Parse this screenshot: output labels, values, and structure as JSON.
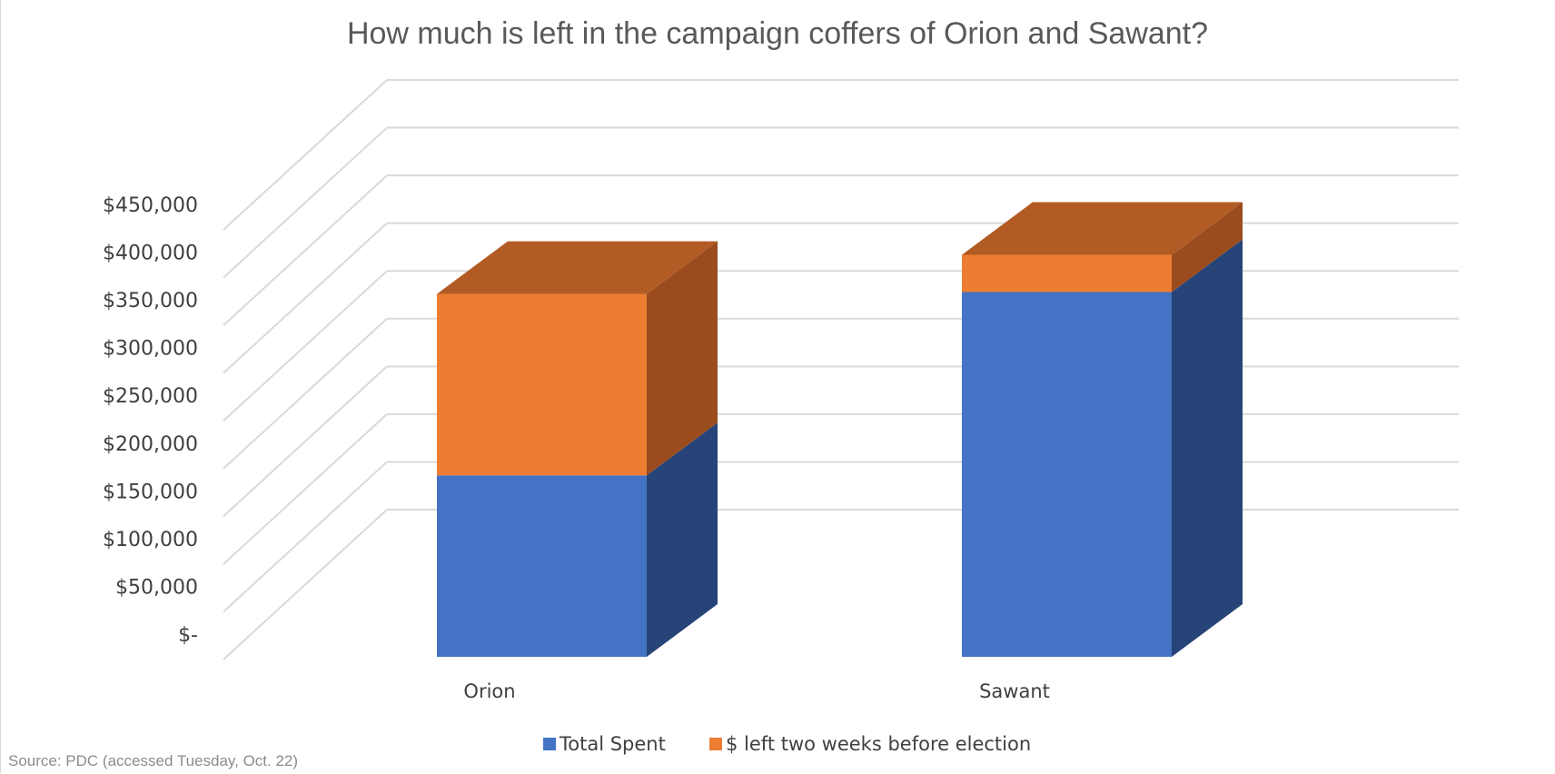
{
  "chart_data": {
    "type": "bar",
    "stacked": true,
    "three_d": true,
    "title": "How much is left in the campaign coffers of Orion and Sawant?",
    "categories": [
      "Orion",
      "Sawant"
    ],
    "series": [
      {
        "name": "Total Spent",
        "values": [
          190000,
          382000
        ],
        "color": "#4472C4",
        "side_color": "#264478",
        "top_color": "#2F5597"
      },
      {
        "name": "$ left two weeks before election",
        "values": [
          190000,
          39000
        ],
        "color": "#ED7D31",
        "side_color": "#9A4C1F",
        "top_color": "#B35B24"
      }
    ],
    "ylim": [
      0,
      450000
    ],
    "yticks": [
      0,
      50000,
      100000,
      150000,
      200000,
      250000,
      300000,
      350000,
      400000,
      450000
    ],
    "ytick_labels": [
      "$-",
      "$50,000",
      "$100,000",
      "$150,000",
      "$200,000",
      "$250,000",
      "$300,000",
      "$350,000",
      "$400,000",
      "$450,000"
    ],
    "xlabel": "",
    "ylabel": "",
    "grid": true,
    "legend_position": "bottom",
    "gridline_color": "#d9d9d9"
  },
  "footer": {
    "source": "Source: PDC (accessed Tuesday, Oct. 22)"
  }
}
